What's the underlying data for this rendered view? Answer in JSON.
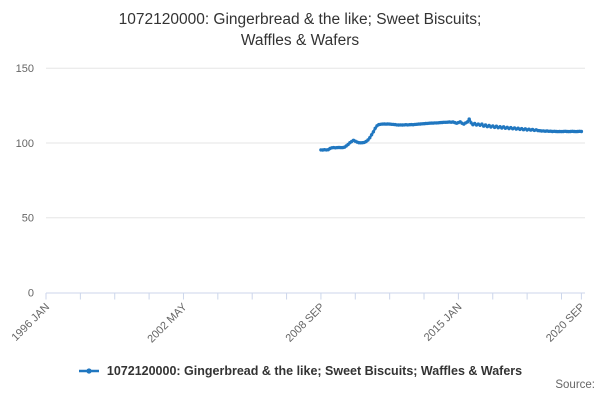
{
  "title": {
    "line1": "1072120000: Gingerbread & the like; Sweet Biscuits;",
    "line2": "Waffles & Wafers"
  },
  "legend": {
    "label": "1072120000: Gingerbread & the like; Sweet Biscuits; Waffles & Wafers"
  },
  "source": {
    "label": "Source:"
  },
  "chart_data": {
    "type": "line",
    "title": "1072120000: Gingerbread & the like; Sweet Biscuits; Waffles & Wafers",
    "legend_position": "bottom-center",
    "x_axis": {
      "tick_labels": [
        "1996 JAN",
        "2002 MAY",
        "2008 SEP",
        "2015 JAN",
        "2020 SEP"
      ],
      "tick_label_months": [
        0,
        76,
        152,
        228,
        296
      ],
      "minor_tick_interval_months": 19,
      "range_months": [
        0,
        298
      ],
      "grid": false,
      "label_rotation_deg": -45
    },
    "y_axis": {
      "ticks": [
        0,
        50,
        100,
        150
      ],
      "range": [
        0,
        155.5
      ],
      "grid": true
    },
    "series": [
      {
        "name": "1072120000: Gingerbread & the like; Sweet Biscuits; Waffles & Wafers",
        "color": "#2077c0",
        "frequency": "monthly",
        "start_label": "2008 SEP",
        "end_label": "2020 SEP",
        "start_month_from_axis_origin": 152,
        "values": [
          95.4,
          95.3,
          95.5,
          95.4,
          95.5,
          96.3,
          96.8,
          96.9,
          96.8,
          96.9,
          97.0,
          96.9,
          96.9,
          97.2,
          98.0,
          99.0,
          100.2,
          101.0,
          101.8,
          101.2,
          100.6,
          100.2,
          100.1,
          100.2,
          100.4,
          101.0,
          102.0,
          103.5,
          105.5,
          107.5,
          109.8,
          111.5,
          112.3,
          112.5,
          112.6,
          112.7,
          112.6,
          112.7,
          112.6,
          112.5,
          112.4,
          112.3,
          112.1,
          112.0,
          112.1,
          112.0,
          112.1,
          112.2,
          112.1,
          112.2,
          112.3,
          112.2,
          112.4,
          112.5,
          112.6,
          112.7,
          112.8,
          112.9,
          113.0,
          113.1,
          113.2,
          113.3,
          113.3,
          113.4,
          113.4,
          113.5,
          113.6,
          113.7,
          113.8,
          113.8,
          113.9,
          114.0,
          113.9,
          114.0,
          113.6,
          113.2,
          113.6,
          114.2,
          113.2,
          112.6,
          113.4,
          114.0,
          116.0,
          113.5,
          112.2,
          113.0,
          112.0,
          112.6,
          111.8,
          112.6,
          111.2,
          112.0,
          110.9,
          111.7,
          110.7,
          111.4,
          110.4,
          111.2,
          110.2,
          110.9,
          110.0,
          110.8,
          109.8,
          110.5,
          109.6,
          110.3,
          109.5,
          110.1,
          109.3,
          109.9,
          109.1,
          109.6,
          108.9,
          109.5,
          108.7,
          109.2,
          108.6,
          109.0,
          108.4,
          108.8,
          108.3,
          108.2,
          108.0,
          108.1,
          107.9,
          108.0,
          107.8,
          107.9,
          107.7,
          107.8,
          107.7,
          107.6,
          107.7,
          107.6,
          107.7,
          107.8,
          107.7,
          107.6,
          107.7,
          107.8,
          107.7,
          107.6,
          107.7,
          107.8,
          107.7
        ]
      }
    ]
  }
}
